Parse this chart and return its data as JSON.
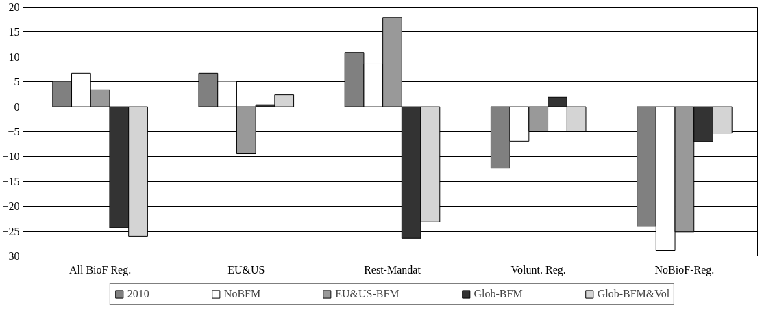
{
  "chart_data": {
    "type": "bar",
    "categories": [
      "All BioF Reg.",
      "EU&US",
      "Rest-Mandat",
      "Volunt. Reg.",
      "NoBioF-Reg."
    ],
    "series": [
      {
        "name": "2010",
        "color": "#808080",
        "values": [
          5.1,
          6.7,
          10.9,
          -12.3,
          -24
        ]
      },
      {
        "name": "NoBFM",
        "color": "#ffffff",
        "values": [
          6.7,
          5.1,
          8.6,
          -6.9,
          -28.9
        ]
      },
      {
        "name": "EU&US-BFM",
        "color": "#999999",
        "values": [
          3.4,
          -9.4,
          17.9,
          -4.9,
          -25.1
        ]
      },
      {
        "name": "Glob-BFM",
        "color": "#333333",
        "values": [
          -24.3,
          0.4,
          -26.4,
          1.9,
          -7
        ]
      },
      {
        "name": "Glob-BFM&Vol",
        "color": "#d4d4d4",
        "values": [
          -26,
          2.4,
          -23.1,
          -5,
          -5.3
        ]
      }
    ],
    "ylim": [
      -30,
      20
    ],
    "yticks": [
      -30,
      -25,
      -20,
      -15,
      -10,
      -5,
      0,
      5,
      10,
      15,
      20
    ],
    "grid": "y",
    "legend": "bottom"
  }
}
